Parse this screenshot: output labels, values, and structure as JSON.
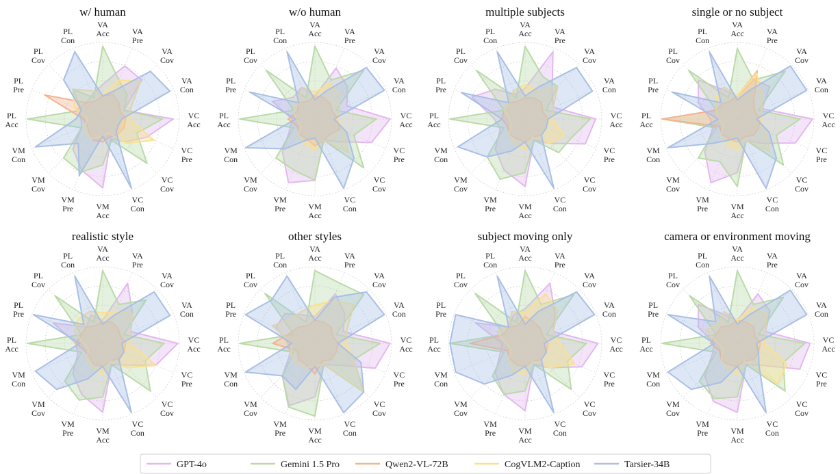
{
  "axes": [
    {
      "key": "VA_Acc",
      "line1": "VA",
      "line2": "Acc"
    },
    {
      "key": "VA_Pre",
      "line1": "VA",
      "line2": "Pre"
    },
    {
      "key": "VA_Cov",
      "line1": "VA",
      "line2": "Cov"
    },
    {
      "key": "VA_Con",
      "line1": "VA",
      "line2": "Con"
    },
    {
      "key": "VC_Acc",
      "line1": "VC",
      "line2": "Acc"
    },
    {
      "key": "VC_Pre",
      "line1": "VC",
      "line2": "Pre"
    },
    {
      "key": "VC_Cov",
      "line1": "VC",
      "line2": "Cov"
    },
    {
      "key": "VC_Con",
      "line1": "VC",
      "line2": "Con"
    },
    {
      "key": "VM_Acc",
      "line1": "VM",
      "line2": "Acc"
    },
    {
      "key": "VM_Pre",
      "line1": "VM",
      "line2": "Pre"
    },
    {
      "key": "VM_Cov",
      "line1": "VM",
      "line2": "Cov"
    },
    {
      "key": "VM_Con",
      "line1": "VM",
      "line2": "Con"
    },
    {
      "key": "PL_Acc",
      "line1": "PL",
      "line2": "Acc"
    },
    {
      "key": "PL_Pre",
      "line1": "PL",
      "line2": "Pre"
    },
    {
      "key": "PL_Cov",
      "line1": "PL",
      "line2": "Cov"
    },
    {
      "key": "PL_Con",
      "line1": "PL",
      "line2": "Con"
    }
  ],
  "legend": {
    "entries": [
      {
        "name": "GPT-4o",
        "color": "#e3b8ee"
      },
      {
        "name": "Gemini 1.5 Pro",
        "color": "#b9dba7"
      },
      {
        "name": "Qwen2-VL-72B",
        "color": "#f6b38e"
      },
      {
        "name": "CogVLM2-Caption",
        "color": "#fbe08e"
      },
      {
        "name": "Tarsier-34B",
        "color": "#a9bfe5"
      }
    ]
  },
  "chart_data": [
    {
      "type": "radar",
      "title": "w/ human",
      "rlim": [
        0,
        1
      ],
      "series": [
        {
          "name": "GPT-4o",
          "color": "#e3b8ee",
          "values": [
            0.45,
            0.75,
            0.72,
            0.3,
            0.92,
            0.62,
            0.42,
            0.28,
            0.9,
            0.72,
            0.55,
            0.3,
            0.28,
            0.35,
            0.3,
            0.35
          ]
        },
        {
          "name": "Gemini 1.5 Pro",
          "color": "#b9dba7",
          "values": [
            0.95,
            0.55,
            0.45,
            0.3,
            0.78,
            0.48,
            0.82,
            0.3,
            0.6,
            0.75,
            0.72,
            0.3,
            0.98,
            0.3,
            0.55,
            0.3
          ]
        },
        {
          "name": "Qwen2-VL-72B",
          "color": "#f6b38e",
          "values": [
            0.3,
            0.35,
            0.3,
            0.25,
            0.3,
            0.3,
            0.28,
            0.25,
            0.3,
            0.3,
            0.25,
            0.22,
            0.25,
            0.82,
            0.3,
            0.25
          ]
        },
        {
          "name": "CogVLM2-Caption",
          "color": "#fbe08e",
          "values": [
            0.32,
            0.55,
            0.7,
            0.4,
            0.35,
            0.72,
            0.45,
            0.2,
            0.22,
            0.28,
            0.3,
            0.25,
            0.2,
            0.4,
            0.55,
            0.4
          ]
        },
        {
          "name": "Tarsier-34B",
          "color": "#a9bfe5",
          "values": [
            0.3,
            0.4,
            0.88,
            0.95,
            0.25,
            0.22,
            0.25,
            0.98,
            0.22,
            0.8,
            0.45,
            0.95,
            0.35,
            0.3,
            0.72,
            0.95
          ]
        }
      ]
    },
    {
      "type": "radar",
      "title": "w/o human",
      "rlim": [
        0,
        1
      ],
      "series": [
        {
          "name": "GPT-4o",
          "color": "#e3b8ee",
          "values": [
            0.3,
            0.72,
            0.6,
            0.45,
            0.98,
            0.8,
            0.42,
            0.3,
            0.8,
            0.9,
            0.6,
            0.35,
            0.3,
            0.6,
            0.4,
            0.45
          ]
        },
        {
          "name": "Gemini 1.5 Pro",
          "color": "#b9dba7",
          "values": [
            0.95,
            0.55,
            0.9,
            0.3,
            0.8,
            0.55,
            0.9,
            0.3,
            0.8,
            0.72,
            0.72,
            0.3,
            0.98,
            0.3,
            0.9,
            0.3
          ]
        },
        {
          "name": "Qwen2-VL-72B",
          "color": "#f6b38e",
          "values": [
            0.3,
            0.3,
            0.28,
            0.25,
            0.3,
            0.35,
            0.28,
            0.3,
            0.35,
            0.28,
            0.28,
            0.25,
            0.35,
            0.25,
            0.3,
            0.25
          ]
        },
        {
          "name": "CogVLM2-Caption",
          "color": "#fbe08e",
          "values": [
            0.35,
            0.5,
            0.45,
            0.35,
            0.3,
            0.4,
            0.62,
            0.3,
            0.4,
            0.35,
            0.3,
            0.2,
            0.25,
            0.3,
            0.3,
            0.45
          ]
        },
        {
          "name": "Tarsier-34B",
          "color": "#a9bfe5",
          "values": [
            0.25,
            0.4,
            0.95,
            0.98,
            0.25,
            0.45,
            0.72,
            0.98,
            0.25,
            0.3,
            0.55,
            0.98,
            0.25,
            0.92,
            0.3,
            0.95
          ]
        }
      ]
    },
    {
      "type": "radar",
      "title": "multiple subjects",
      "rlim": [
        0,
        1
      ],
      "series": [
        {
          "name": "GPT-4o",
          "color": "#e3b8ee",
          "values": [
            0.4,
            0.95,
            0.5,
            0.4,
            0.92,
            0.85,
            0.45,
            0.3,
            0.88,
            0.72,
            0.55,
            0.35,
            0.4,
            0.75,
            0.55,
            0.35
          ]
        },
        {
          "name": "Gemini 1.5 Pro",
          "color": "#b9dba7",
          "values": [
            0.95,
            0.6,
            0.6,
            0.3,
            0.85,
            0.65,
            0.62,
            0.3,
            0.7,
            0.85,
            0.7,
            0.3,
            0.98,
            0.3,
            0.9,
            0.3
          ]
        },
        {
          "name": "Qwen2-VL-72B",
          "color": "#f6b38e",
          "values": [
            0.28,
            0.3,
            0.3,
            0.25,
            0.3,
            0.3,
            0.3,
            0.25,
            0.3,
            0.28,
            0.28,
            0.25,
            0.3,
            0.3,
            0.3,
            0.25
          ]
        },
        {
          "name": "CogVLM2-Caption",
          "color": "#fbe08e",
          "values": [
            0.45,
            0.4,
            0.6,
            0.4,
            0.35,
            0.55,
            0.45,
            0.25,
            0.4,
            0.35,
            0.3,
            0.2,
            0.2,
            0.3,
            0.3,
            0.4
          ]
        },
        {
          "name": "Tarsier-34B",
          "color": "#a9bfe5",
          "values": [
            0.3,
            0.45,
            0.95,
            0.95,
            0.3,
            0.3,
            0.3,
            0.98,
            0.3,
            0.45,
            0.7,
            0.95,
            0.3,
            0.9,
            0.3,
            0.95
          ]
        }
      ]
    },
    {
      "type": "radar",
      "title": "single or no subject",
      "rlim": [
        0,
        1
      ],
      "series": [
        {
          "name": "GPT-4o",
          "color": "#e3b8ee",
          "values": [
            0.3,
            0.55,
            0.6,
            0.35,
            0.98,
            0.82,
            0.45,
            0.3,
            0.7,
            0.9,
            0.6,
            0.35,
            0.35,
            0.55,
            0.72,
            0.4
          ]
        },
        {
          "name": "Gemini 1.5 Pro",
          "color": "#b9dba7",
          "values": [
            0.92,
            0.55,
            0.88,
            0.3,
            0.82,
            0.55,
            0.85,
            0.3,
            0.88,
            0.6,
            0.72,
            0.3,
            0.98,
            0.3,
            0.9,
            0.3
          ]
        },
        {
          "name": "Qwen2-VL-72B",
          "color": "#f6b38e",
          "values": [
            0.3,
            0.68,
            0.3,
            0.25,
            0.3,
            0.3,
            0.3,
            0.25,
            0.3,
            0.28,
            0.28,
            0.25,
            0.98,
            0.3,
            0.28,
            0.25
          ]
        },
        {
          "name": "CogVLM2-Caption",
          "color": "#fbe08e",
          "values": [
            0.3,
            0.65,
            0.45,
            0.35,
            0.3,
            0.4,
            0.6,
            0.3,
            0.4,
            0.35,
            0.3,
            0.2,
            0.25,
            0.3,
            0.4,
            0.45
          ]
        },
        {
          "name": "Tarsier-34B",
          "color": "#a9bfe5",
          "values": [
            0.25,
            0.4,
            0.98,
            0.98,
            0.25,
            0.45,
            0.72,
            0.98,
            0.25,
            0.3,
            0.45,
            0.98,
            0.25,
            0.92,
            0.3,
            0.95
          ]
        }
      ]
    },
    {
      "type": "radar",
      "title": "realistic style",
      "rlim": [
        0,
        1
      ],
      "series": [
        {
          "name": "GPT-4o",
          "color": "#e3b8ee",
          "values": [
            0.3,
            0.85,
            0.55,
            0.4,
            0.98,
            0.75,
            0.4,
            0.3,
            0.9,
            0.72,
            0.55,
            0.35,
            0.35,
            0.7,
            0.3,
            0.4
          ]
        },
        {
          "name": "Gemini 1.5 Pro",
          "color": "#b9dba7",
          "values": [
            0.95,
            0.55,
            0.8,
            0.3,
            0.8,
            0.6,
            0.88,
            0.3,
            0.7,
            0.8,
            0.7,
            0.3,
            0.98,
            0.3,
            0.88,
            0.3
          ]
        },
        {
          "name": "Qwen2-VL-72B",
          "color": "#f6b38e",
          "values": [
            0.28,
            0.3,
            0.28,
            0.25,
            0.3,
            0.3,
            0.28,
            0.25,
            0.3,
            0.3,
            0.25,
            0.25,
            0.35,
            0.3,
            0.3,
            0.25
          ]
        },
        {
          "name": "CogVLM2-Caption",
          "color": "#fbe08e",
          "values": [
            0.4,
            0.45,
            0.55,
            0.4,
            0.35,
            0.75,
            0.45,
            0.25,
            0.4,
            0.35,
            0.3,
            0.2,
            0.25,
            0.4,
            0.45,
            0.45
          ]
        },
        {
          "name": "Tarsier-34B",
          "color": "#a9bfe5",
          "values": [
            0.25,
            0.4,
            0.95,
            0.95,
            0.25,
            0.3,
            0.3,
            0.98,
            0.3,
            0.5,
            0.85,
            0.95,
            0.3,
            0.98,
            0.35,
            0.95
          ]
        }
      ]
    },
    {
      "type": "radar",
      "title": "other styles",
      "rlim": [
        0,
        1
      ],
      "series": [
        {
          "name": "GPT-4o",
          "color": "#e3b8ee",
          "values": [
            0.35,
            0.7,
            0.55,
            0.4,
            0.98,
            0.85,
            0.4,
            0.3,
            0.7,
            0.88,
            0.6,
            0.35,
            0.35,
            0.55,
            0.55,
            0.4
          ]
        },
        {
          "name": "Gemini 1.5 Pro",
          "color": "#b9dba7",
          "values": [
            0.95,
            0.85,
            0.9,
            0.3,
            0.85,
            0.55,
            0.9,
            0.3,
            0.95,
            0.9,
            0.6,
            0.3,
            0.98,
            0.3,
            0.92,
            0.3
          ]
        },
        {
          "name": "Qwen2-VL-72B",
          "color": "#f6b38e",
          "values": [
            0.3,
            0.3,
            0.3,
            0.25,
            0.3,
            0.3,
            0.3,
            0.25,
            0.4,
            0.3,
            0.3,
            0.25,
            0.55,
            0.35,
            0.3,
            0.25
          ]
        },
        {
          "name": "CogVLM2-Caption",
          "color": "#fbe08e",
          "values": [
            0.5,
            0.6,
            0.72,
            0.45,
            0.4,
            0.55,
            0.88,
            0.3,
            0.3,
            0.35,
            0.35,
            0.35,
            0.3,
            0.6,
            0.45,
            0.45
          ]
        },
        {
          "name": "Tarsier-34B",
          "color": "#a9bfe5",
          "values": [
            0.3,
            0.65,
            0.95,
            0.98,
            0.3,
            0.65,
            0.9,
            0.98,
            0.3,
            0.65,
            0.6,
            0.98,
            0.3,
            0.98,
            0.8,
            0.95
          ]
        }
      ]
    },
    {
      "type": "radar",
      "title": "subject moving only",
      "rlim": [
        0,
        1
      ],
      "series": [
        {
          "name": "GPT-4o",
          "color": "#e3b8ee",
          "values": [
            0.45,
            0.85,
            0.55,
            0.4,
            0.95,
            0.8,
            0.45,
            0.3,
            0.88,
            0.72,
            0.55,
            0.35,
            0.3,
            0.7,
            0.3,
            0.4
          ]
        },
        {
          "name": "Gemini 1.5 Pro",
          "color": "#b9dba7",
          "values": [
            0.95,
            0.55,
            0.9,
            0.3,
            0.8,
            0.6,
            0.85,
            0.3,
            0.62,
            0.72,
            0.6,
            0.3,
            0.98,
            0.3,
            0.92,
            0.3
          ]
        },
        {
          "name": "Qwen2-VL-72B",
          "color": "#f6b38e",
          "values": [
            0.35,
            0.3,
            0.28,
            0.25,
            0.3,
            0.3,
            0.3,
            0.25,
            0.3,
            0.3,
            0.28,
            0.25,
            0.72,
            0.3,
            0.3,
            0.25
          ]
        },
        {
          "name": "CogVLM2-Caption",
          "color": "#fbe08e",
          "values": [
            0.4,
            0.7,
            0.6,
            0.4,
            0.45,
            0.7,
            0.45,
            0.25,
            0.4,
            0.4,
            0.3,
            0.2,
            0.25,
            0.4,
            0.3,
            0.45
          ]
        },
        {
          "name": "Tarsier-34B",
          "color": "#a9bfe5",
          "values": [
            0.25,
            0.45,
            0.95,
            0.98,
            0.25,
            0.3,
            0.3,
            0.98,
            0.3,
            0.45,
            0.75,
            0.98,
            0.98,
            0.98,
            0.3,
            0.95
          ]
        }
      ]
    },
    {
      "type": "radar",
      "title": "camera or environment moving",
      "rlim": [
        0,
        1
      ],
      "series": [
        {
          "name": "GPT-4o",
          "color": "#e3b8ee",
          "values": [
            0.3,
            0.7,
            0.6,
            0.4,
            0.95,
            0.88,
            0.4,
            0.3,
            0.9,
            0.82,
            0.6,
            0.35,
            0.3,
            0.55,
            0.72,
            0.4
          ]
        },
        {
          "name": "Gemini 1.5 Pro",
          "color": "#b9dba7",
          "values": [
            0.95,
            0.55,
            0.85,
            0.3,
            0.88,
            0.65,
            0.88,
            0.3,
            0.7,
            0.78,
            0.7,
            0.3,
            0.98,
            0.3,
            0.88,
            0.3
          ]
        },
        {
          "name": "Qwen2-VL-72B",
          "color": "#f6b38e",
          "values": [
            0.3,
            0.3,
            0.3,
            0.25,
            0.3,
            0.3,
            0.3,
            0.25,
            0.3,
            0.3,
            0.3,
            0.25,
            0.35,
            0.3,
            0.3,
            0.25
          ]
        },
        {
          "name": "CogVLM2-Caption",
          "color": "#fbe08e",
          "values": [
            0.3,
            0.5,
            0.55,
            0.4,
            0.35,
            0.7,
            0.75,
            0.25,
            0.4,
            0.35,
            0.3,
            0.2,
            0.25,
            0.45,
            0.35,
            0.45
          ]
        },
        {
          "name": "Tarsier-34B",
          "color": "#a9bfe5",
          "values": [
            0.25,
            0.4,
            0.98,
            0.98,
            0.25,
            0.3,
            0.4,
            0.98,
            0.3,
            0.55,
            0.85,
            0.98,
            0.3,
            0.98,
            0.4,
            0.95
          ]
        }
      ]
    }
  ]
}
